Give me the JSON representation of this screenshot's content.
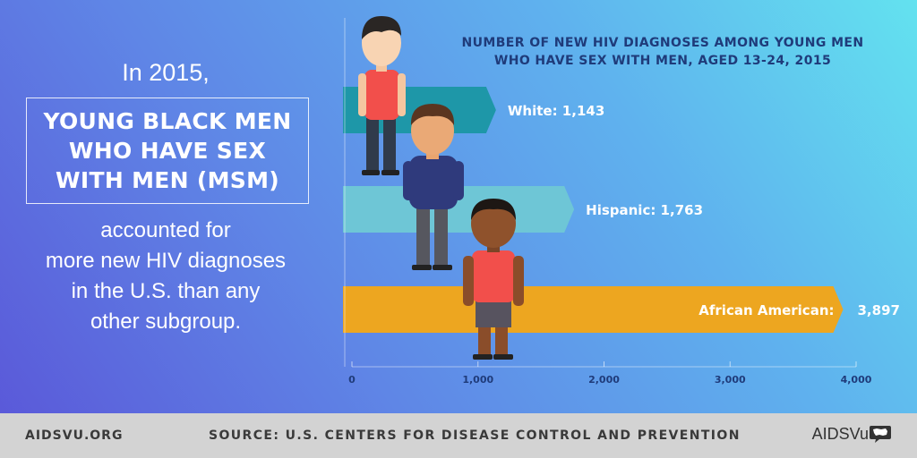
{
  "intro": {
    "year_line": "In 2015,",
    "callout_lines": [
      "YOUNG BLACK MEN",
      "WHO HAVE SEX",
      "WITH MEN (MSM)"
    ],
    "body_lines": [
      "accounted for",
      "more new HIV diagnoses",
      "in the U.S. than any",
      "other subgroup."
    ]
  },
  "chart_data": {
    "type": "bar",
    "title": "NUMBER OF NEW HIV DIAGNOSES AMONG YOUNG MEN WHO HAVE SEX WITH MEN, AGED 13-24, 2015",
    "title_lines": [
      "NUMBER OF NEW HIV DIAGNOSES AMONG YOUNG MEN",
      "WHO HAVE SEX WITH MEN, AGED 13-24, 2015"
    ],
    "orientation": "horizontal",
    "categories": [
      "White",
      "Hispanic",
      "African American"
    ],
    "values": [
      1143,
      1763,
      3897
    ],
    "value_labels": [
      "1,143",
      "1,763",
      "3,897"
    ],
    "category_labels": [
      "White:",
      "Hispanic:",
      "African American:"
    ],
    "colors": [
      "#1e97a8",
      "#6ec6d6",
      "#eda620"
    ],
    "xlim": [
      0,
      4000
    ],
    "xticks": [
      0,
      1000,
      2000,
      3000,
      4000
    ],
    "xtick_labels": [
      "0",
      "1,000",
      "2,000",
      "3,000",
      "4,000"
    ],
    "grid": false
  },
  "footer": {
    "site": "AIDSVU.ORG",
    "source": "SOURCE: U.S. CENTERS FOR DISEASE CONTROL AND PREVENTION",
    "logo": "AIDSVu",
    "logo_icon": "us-map-speech-bubble-icon",
    "background": "#d3d3d3"
  },
  "illustrations": {
    "figures": [
      "white-young-man",
      "hispanic-young-man",
      "african-american-young-man"
    ]
  }
}
